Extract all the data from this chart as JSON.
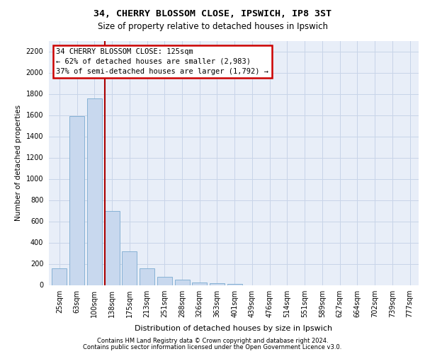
{
  "title1": "34, CHERRY BLOSSOM CLOSE, IPSWICH, IP8 3ST",
  "title2": "Size of property relative to detached houses in Ipswich",
  "xlabel": "Distribution of detached houses by size in Ipswich",
  "ylabel": "Number of detached properties",
  "categories": [
    "25sqm",
    "63sqm",
    "100sqm",
    "138sqm",
    "175sqm",
    "213sqm",
    "251sqm",
    "288sqm",
    "326sqm",
    "363sqm",
    "401sqm",
    "439sqm",
    "476sqm",
    "514sqm",
    "551sqm",
    "589sqm",
    "627sqm",
    "664sqm",
    "702sqm",
    "739sqm",
    "777sqm"
  ],
  "values": [
    155,
    1590,
    1760,
    700,
    315,
    160,
    80,
    48,
    25,
    15,
    8,
    0,
    0,
    0,
    0,
    0,
    0,
    0,
    0,
    0,
    0
  ],
  "bar_color": "#c8d8ee",
  "bar_edge_color": "#7aaad0",
  "highlight_line_color": "#aa0000",
  "annotation_line1": "34 CHERRY BLOSSOM CLOSE: 125sqm",
  "annotation_line2": "← 62% of detached houses are smaller (2,983)",
  "annotation_line3": "37% of semi-detached houses are larger (1,792) →",
  "annotation_box_facecolor": "#ffffff",
  "annotation_box_edgecolor": "#cc0000",
  "ylim": [
    0,
    2300
  ],
  "yticks": [
    0,
    200,
    400,
    600,
    800,
    1000,
    1200,
    1400,
    1600,
    1800,
    2000,
    2200
  ],
  "footer1": "Contains HM Land Registry data © Crown copyright and database right 2024.",
  "footer2": "Contains public sector information licensed under the Open Government Licence v3.0.",
  "grid_color": "#c8d4e8",
  "bg_color": "#e8eef8",
  "title1_fontsize": 9.5,
  "title2_fontsize": 8.5,
  "ylabel_fontsize": 7.5,
  "xlabel_fontsize": 8.0,
  "tick_fontsize": 7.0,
  "annot_fontsize": 7.5,
  "footer_fontsize": 6.0
}
